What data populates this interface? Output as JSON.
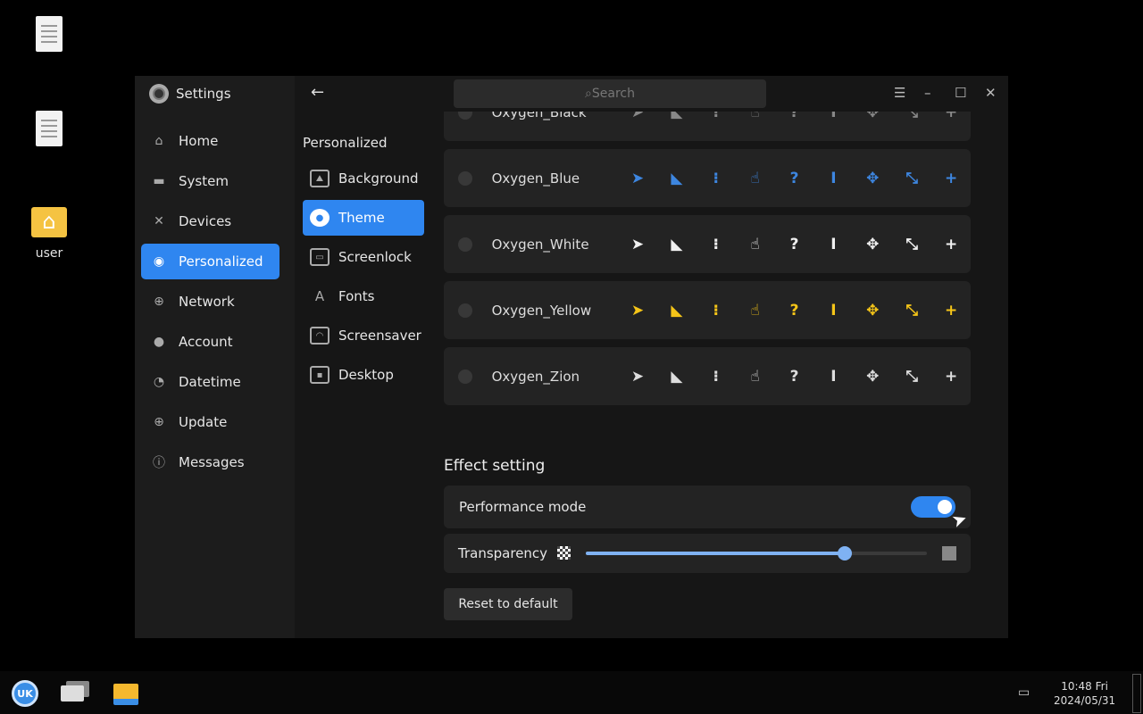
{
  "desktop": {
    "icons": [
      {
        "label": ""
      },
      {
        "label": ""
      },
      {
        "label": "user"
      }
    ]
  },
  "window": {
    "title": "Settings",
    "search_placeholder": "Search"
  },
  "sidebar": {
    "items": [
      {
        "label": "Home",
        "icon": "home-icon"
      },
      {
        "label": "System",
        "icon": "monitor-icon"
      },
      {
        "label": "Devices",
        "icon": "tools-icon"
      },
      {
        "label": "Personalized",
        "icon": "palette-icon",
        "active": true
      },
      {
        "label": "Network",
        "icon": "network-icon"
      },
      {
        "label": "Account",
        "icon": "person-icon"
      },
      {
        "label": "Datetime",
        "icon": "clock-icon"
      },
      {
        "label": "Update",
        "icon": "update-icon"
      },
      {
        "label": "Messages",
        "icon": "info-icon"
      }
    ]
  },
  "subnav": {
    "heading": "Personalized",
    "items": [
      {
        "label": "Background"
      },
      {
        "label": "Theme",
        "active": true
      },
      {
        "label": "Screenlock"
      },
      {
        "label": "Fonts"
      },
      {
        "label": "Screensaver"
      },
      {
        "label": "Desktop"
      }
    ]
  },
  "themes": [
    {
      "name": "Oxygen_Black",
      "color": "#888888"
    },
    {
      "name": "Oxygen_Blue",
      "color": "#3d86e0"
    },
    {
      "name": "Oxygen_White",
      "color": "#f0f0f0"
    },
    {
      "name": "Oxygen_Yellow",
      "color": "#f5c518"
    },
    {
      "name": "Oxygen_Zion",
      "color": "#dddddd"
    }
  ],
  "effect": {
    "heading": "Effect setting",
    "performance_label": "Performance mode",
    "performance_on": true,
    "transparency_label": "Transparency",
    "transparency_value": 0.76,
    "reset_label": "Reset to default"
  },
  "accent": "#2f86f0",
  "taskbar": {
    "time": "10:48 Fri",
    "date": "2024/05/31"
  }
}
